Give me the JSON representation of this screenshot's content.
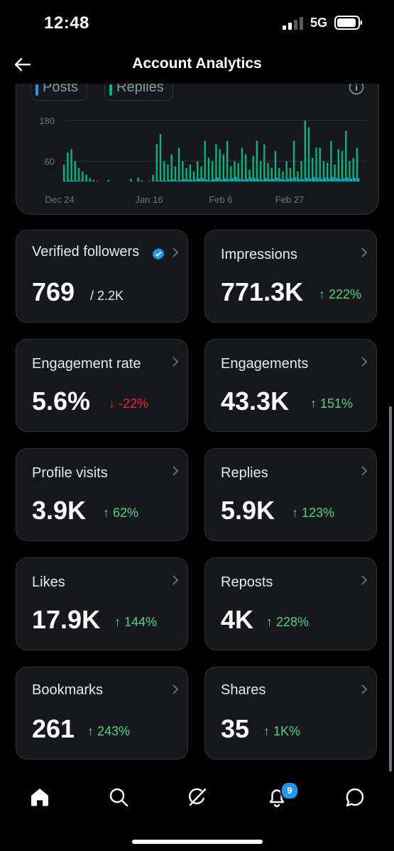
{
  "status_bar": {
    "time": "12:48",
    "network": "5G"
  },
  "header": {
    "title": "Account Analytics"
  },
  "chart": {
    "legend": [
      {
        "label": "Posts",
        "color": "#1d9bf0"
      },
      {
        "label": "Replies",
        "color": "#00ba7c"
      }
    ]
  },
  "chart_data": {
    "type": "bar",
    "y_ticks": [
      "180",
      "60"
    ],
    "x_ticks": [
      "Dec 24",
      "Jan 16",
      "Feb 6",
      "Feb 27"
    ],
    "ylim": [
      0,
      230
    ],
    "grid": true,
    "series": [
      {
        "name": "Posts",
        "color": "#1d9bf0",
        "values": [
          2,
          4,
          3,
          2,
          2,
          1,
          1,
          1,
          0,
          0,
          0,
          0,
          0,
          0,
          0,
          0,
          0,
          0,
          1,
          0,
          1,
          0,
          0,
          0,
          1,
          2,
          3,
          2,
          4,
          6,
          3,
          4,
          8,
          6,
          5,
          7,
          9,
          10,
          6,
          4,
          8,
          12,
          6,
          9,
          7,
          10,
          14,
          8,
          6,
          9,
          12,
          10,
          8,
          6,
          10,
          7,
          9,
          12,
          8,
          6,
          9,
          10,
          12,
          8,
          7,
          11,
          9,
          13,
          10,
          8,
          12,
          9,
          14,
          11,
          8,
          10,
          12,
          9,
          11,
          10
        ]
      },
      {
        "name": "Replies",
        "color": "#00ba7c",
        "values": [
          50,
          85,
          95,
          60,
          40,
          30,
          20,
          10,
          5,
          2,
          0,
          0,
          5,
          0,
          0,
          0,
          0,
          0,
          8,
          0,
          12,
          3,
          0,
          2,
          20,
          110,
          140,
          60,
          50,
          80,
          45,
          100,
          60,
          40,
          50,
          30,
          60,
          45,
          120,
          70,
          60,
          110,
          95,
          80,
          120,
          45,
          60,
          55,
          100,
          80,
          35,
          75,
          120,
          60,
          110,
          55,
          40,
          90,
          40,
          30,
          60,
          40,
          120,
          30,
          60,
          180,
          160,
          70,
          100,
          100,
          60,
          55,
          120,
          50,
          95,
          90,
          150,
          60,
          70,
          100
        ]
      }
    ]
  },
  "cards": [
    {
      "label": "Verified followers",
      "value": "769",
      "sub": "/ 2.2K"
    },
    {
      "label": "Impressions",
      "value": "771.3K",
      "delta": "↑ 222%",
      "dir": "up"
    },
    {
      "label": "Engagement rate",
      "value": "5.6%",
      "delta": "↓ -22%",
      "dir": "down"
    },
    {
      "label": "Engagements",
      "value": "43.3K",
      "delta": "↑ 151%",
      "dir": "up"
    },
    {
      "label": "Profile visits",
      "value": "3.9K",
      "delta": "↑ 62%",
      "dir": "up"
    },
    {
      "label": "Replies",
      "value": "5.9K",
      "delta": "↑ 123%",
      "dir": "up"
    },
    {
      "label": "Likes",
      "value": "17.9K",
      "delta": "↑ 144%",
      "dir": "up"
    },
    {
      "label": "Reposts",
      "value": "4K",
      "delta": "↑ 228%",
      "dir": "up"
    },
    {
      "label": "Bookmarks",
      "value": "261",
      "delta": "↑ 243%",
      "dir": "up"
    },
    {
      "label": "Shares",
      "value": "35",
      "delta": "↑ 1K%",
      "dir": "up"
    }
  ],
  "tabbar": {
    "notifications_badge": "9"
  },
  "icons": [
    "back-arrow-icon",
    "info-icon",
    "chevron-right-icon",
    "verified-badge-icon",
    "home-icon",
    "search-icon",
    "grok-icon",
    "bell-icon",
    "messages-icon"
  ]
}
